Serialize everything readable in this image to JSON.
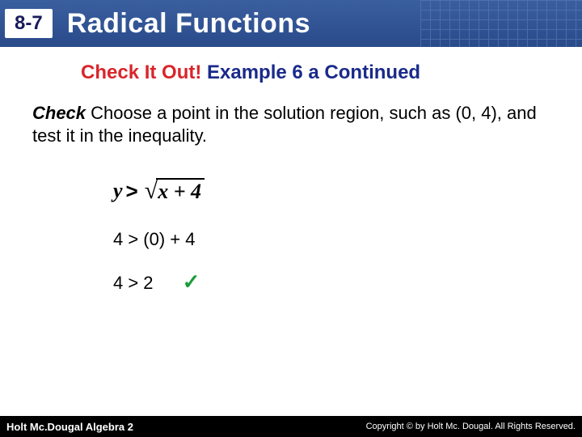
{
  "header": {
    "section_number": "8-7",
    "title": "Radical Functions",
    "bg_gradient_top": "#3a5f9f",
    "bg_gradient_bottom": "#2a4a8a",
    "grid_color": "#5a7fb8"
  },
  "subheading": {
    "red_text": "Check It Out!",
    "blue_text": " Example 6 a Continued",
    "red_color": "#d9252a",
    "blue_color": "#1a2a8a"
  },
  "body": {
    "check_label": "Check",
    "instruction": "  Choose a point in the solution region, such as (0, 4), and test it in the inequality."
  },
  "formula": {
    "lhs_var": "y",
    "op": ">",
    "radicand": "x + 4"
  },
  "steps": {
    "line1": "4 > (0) + 4",
    "line2": "4 > 2",
    "check_symbol": "✓",
    "check_color": "#1a9c3a"
  },
  "footer": {
    "left": "Holt Mc.Dougal Algebra 2",
    "right": "Copyright © by Holt Mc. Dougal. All Rights Reserved."
  }
}
